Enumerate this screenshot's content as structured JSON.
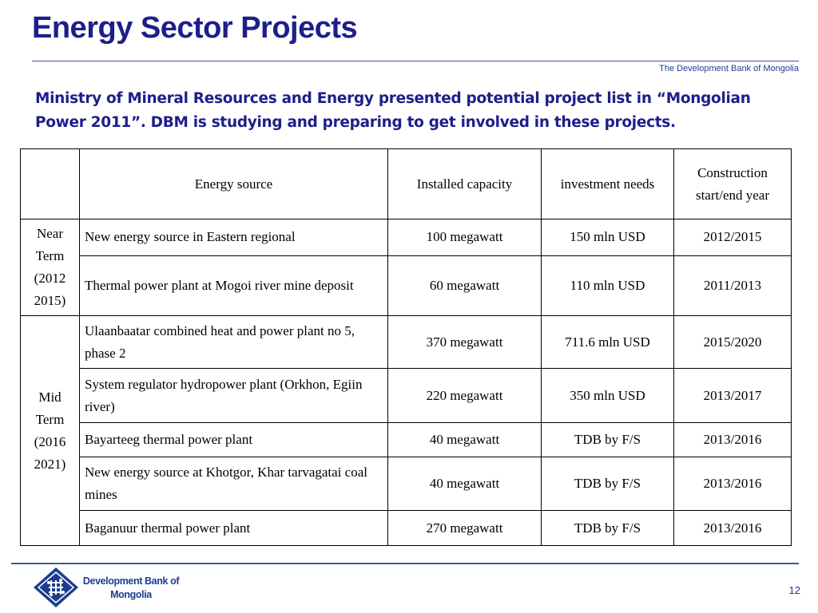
{
  "slide": {
    "title": "Energy Sector Projects",
    "org_header": "The Development Bank of Mongolia",
    "intro": "Ministry of Mineral Resources and Energy presented potential project list in “Mongolian Power 2011”. DBM is studying and preparing to get involved in these projects.",
    "page_number": "12"
  },
  "table": {
    "headers": {
      "period": "",
      "source": "Energy source",
      "capacity": "Installed capacity",
      "investment": "investment needs",
      "years": "Construction start/end year"
    },
    "groups": [
      {
        "period": "Near Term (2012 2015)",
        "rows": [
          {
            "source": "New energy source in Eastern regional",
            "capacity": "100 megawatt",
            "investment": "150 mln USD",
            "years": "2012/2015"
          },
          {
            "source": "Thermal power plant at Mogoi river mine deposit",
            "capacity": "60 megawatt",
            "investment": "110 mln USD",
            "years": "2011/2013"
          }
        ]
      },
      {
        "period": "Mid Term (2016 2021)",
        "rows": [
          {
            "source": "Ulaanbaatar combined heat and power plant no 5, phase 2",
            "capacity": "370 megawatt",
            "investment": "711.6 mln USD",
            "years": "2015/2020"
          },
          {
            "source": "System regulator hydropower plant (Orkhon, Egiin river)",
            "capacity": "220 megawatt",
            "investment": "350 mln USD",
            "years": "2013/2017"
          },
          {
            "source": "Bayarteeg thermal power plant",
            "capacity": "40 megawatt",
            "investment": "TDB by F/S",
            "years": "2013/2016"
          },
          {
            "source": "New energy source at Khotgor, Khar tarvagatai coal mines",
            "capacity": "40 megawatt",
            "investment": "TDB by F/S",
            "years": "2013/2016"
          },
          {
            "source": "Baganuur thermal power plant",
            "capacity": "270 megawatt",
            "investment": "TDB by F/S",
            "years": "2013/2016"
          }
        ]
      }
    ]
  },
  "footer": {
    "logo_icon": "dbm-endless-knot-logo",
    "logo_text": "Development Bank of Mongolia",
    "brand_color": "#1c3d8f",
    "title_color": "#1c1f8a"
  }
}
